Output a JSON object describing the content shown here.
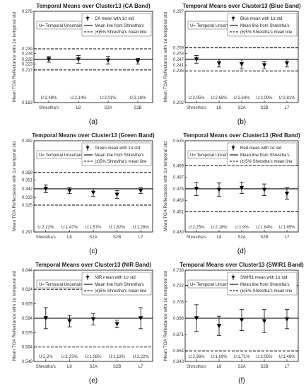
{
  "figure": {
    "ylabel": "Mean TOA Reflectance with 1σ temporal std",
    "uncertainty_box_label": "U= Temporal Uncertainty",
    "legend_mean_line": "Mean line from Shrestha's",
    "legend_band_line": "(±)5% Shrestha's mean line",
    "colors": {
      "axis": "#000000",
      "markers": "#000000",
      "background": "#ffffff"
    }
  },
  "chart_data": [
    {
      "type": "errorbar",
      "panel": "(a)",
      "title": "Temporal Means over Cluster13 (CA Band)",
      "series_label": "CA mean with 1σ std",
      "categories": [
        "Shrestha's",
        "L8",
        "S2A",
        "S2B"
      ],
      "values": [
        0.228,
        0.228,
        0.227,
        0.226
      ],
      "std": [
        0.003,
        0.004,
        0.004,
        0.003
      ],
      "uncertainty": [
        "U:2.48%",
        "U:2.14%",
        "U:3.01%",
        "U:3.18%"
      ],
      "mean_line": 0.228,
      "band_lines": [
        0.239,
        0.217
      ],
      "ylim": [
        0.183,
        0.278
      ],
      "yticks": [
        0.183,
        0.217,
        0.223,
        0.228,
        0.234,
        0.239,
        0.278
      ]
    },
    {
      "type": "errorbar",
      "panel": "(b)",
      "title": "Temporal Means over Cluster13 (Blue Band)",
      "series_label": "Blue mean with 1σ std",
      "categories": [
        "Shrestha's",
        "L8",
        "S2A",
        "S2B",
        "L7"
      ],
      "values": [
        0.247,
        0.243,
        0.242,
        0.241,
        0.243
      ],
      "std": [
        0.004,
        0.004,
        0.005,
        0.004,
        0.004
      ],
      "uncertainty": [
        "U:2.05%",
        "U:2.68%",
        "U:2.64%",
        "U:2.09%",
        "U:3.81%"
      ],
      "mean_line": 0.247,
      "band_lines": [
        0.259,
        0.235
      ],
      "ylim": [
        0.202,
        0.297
      ],
      "yticks": [
        0.202,
        0.235,
        0.241,
        0.247,
        0.253,
        0.259,
        0.297
      ]
    },
    {
      "type": "errorbar",
      "panel": "(c)",
      "title": "Temporal Means over Cluster13 (Green Band)",
      "series_label": "Green mean with 1σ std",
      "categories": [
        "Shrestha's",
        "L8",
        "S2A",
        "S2B",
        "L7"
      ],
      "values": [
        0.342,
        0.34,
        0.338,
        0.336,
        0.34
      ],
      "std": [
        0.004,
        0.003,
        0.004,
        0.004,
        0.003
      ],
      "uncertainty": [
        "U:2.22%",
        "U:1.47%",
        "U:1.57%",
        "U:1.62%",
        "U:1.28%"
      ],
      "mean_line": 0.342,
      "band_lines": [
        0.359,
        0.325
      ],
      "ylim": [
        0.297,
        0.392
      ],
      "yticks": [
        0.297,
        0.325,
        0.333,
        0.342,
        0.351,
        0.359,
        0.392
      ]
    },
    {
      "type": "errorbar",
      "panel": "(d)",
      "title": "Temporal Means over Cluster13 (Red Band)",
      "series_label": "Red mean with 1σ std",
      "categories": [
        "Shrestha's",
        "L8",
        "S2A",
        "S2B",
        "L7"
      ],
      "values": [
        0.475,
        0.474,
        0.476,
        0.474,
        0.47
      ],
      "std": [
        0.007,
        0.007,
        0.006,
        0.006,
        0.006
      ],
      "uncertainty": [
        "U:2.25%",
        "U:2.18%",
        "U:1.9%",
        "U:1.84%",
        "U:1.85%"
      ],
      "mean_line": 0.475,
      "band_lines": [
        0.499,
        0.451
      ],
      "ylim": [
        0.43,
        0.525
      ],
      "yticks": [
        0.43,
        0.451,
        0.463,
        0.475,
        0.487,
        0.499,
        0.525
      ]
    },
    {
      "type": "errorbar",
      "panel": "(e)",
      "title": "Temporal Means over Cluster13 (NIR Band)",
      "series_label": "NIR mean with 1σ std",
      "categories": [
        "Shrestha's",
        "L8",
        "S2A",
        "S2B",
        "L7"
      ],
      "values": [
        0.594,
        0.591,
        0.593,
        0.588,
        0.594
      ],
      "std": [
        0.011,
        0.006,
        0.006,
        0.004,
        0.011
      ],
      "uncertainty": [
        "U:2.2%",
        "U:1.23%",
        "U:1.08%",
        "U:1.13%",
        "U:2.22%"
      ],
      "mean_line": 0.594,
      "band_lines": [
        0.624,
        0.564
      ],
      "ylim": [
        0.549,
        0.644
      ],
      "yticks": [
        0.549,
        0.564,
        0.579,
        0.594,
        0.609,
        0.624,
        0.644
      ]
    },
    {
      "type": "errorbar",
      "panel": "(f)",
      "title": "Temporal Means over Cluster13 (SWIR1 Band)",
      "series_label": "SWIR1 mean with 1σ std",
      "categories": [
        "Shrestha's",
        "L8",
        "S2A",
        "S2B",
        "L7"
      ],
      "values": [
        0.688,
        0.68,
        0.686,
        0.685,
        0.687
      ],
      "std": [
        0.014,
        0.01,
        0.011,
        0.012,
        0.01
      ],
      "uncertainty": [
        "U:2.36%",
        "U:1.69%",
        "U:1.71%",
        "U:2.05%",
        "U:1.48%"
      ],
      "mean_line": 0.688,
      "band_lines": [
        0.722,
        0.654
      ],
      "ylim": [
        0.643,
        0.738
      ],
      "yticks": [
        0.643,
        0.654,
        0.671,
        0.688,
        0.705,
        0.722,
        0.738
      ]
    }
  ]
}
